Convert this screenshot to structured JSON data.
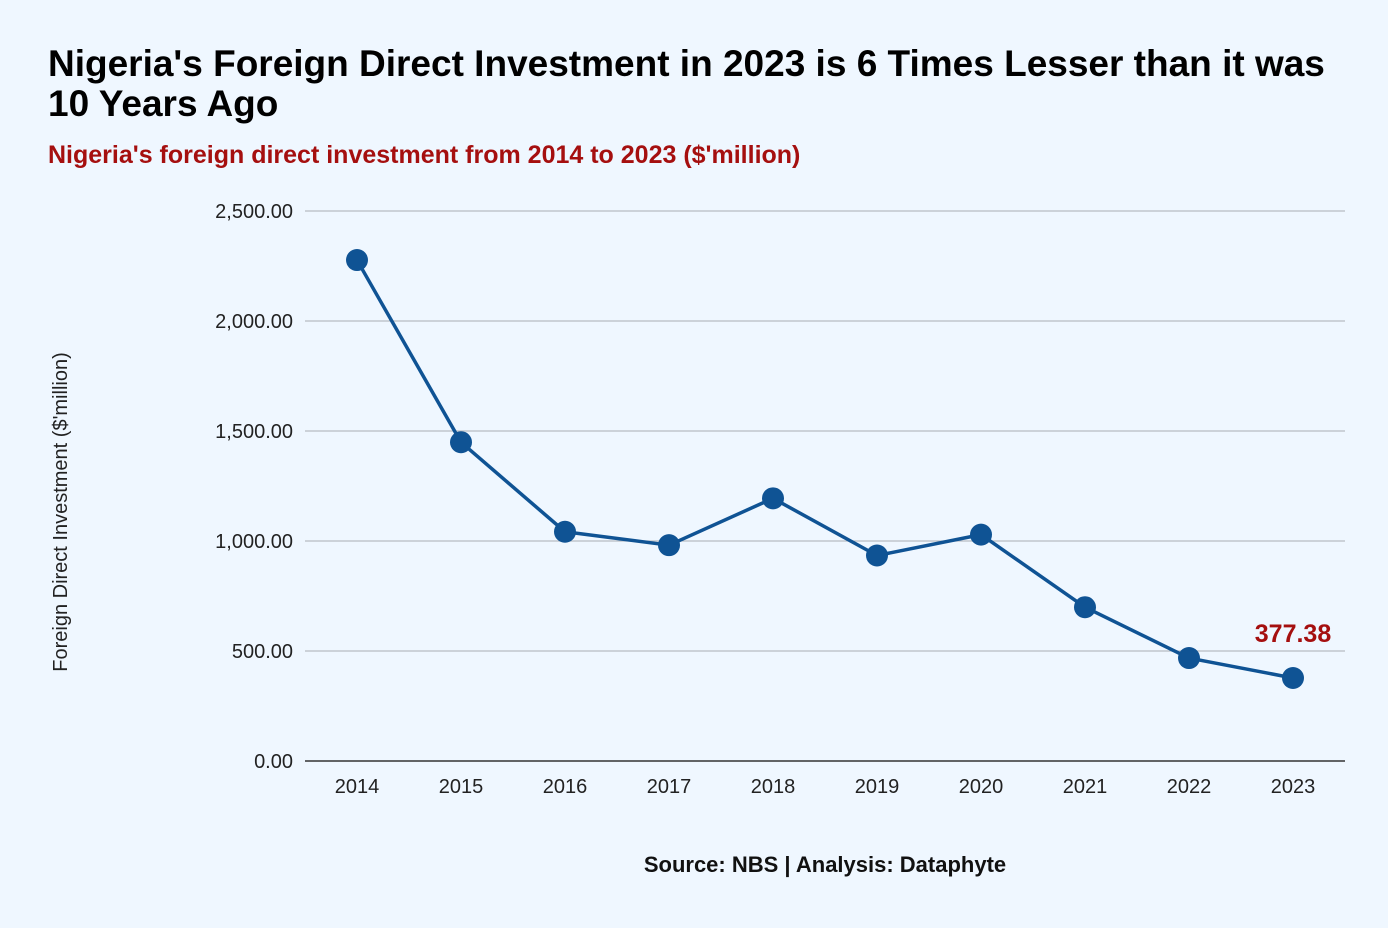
{
  "header": {
    "title": "Nigeria's Foreign Direct Investment in 2023 is 6 Times Lesser than it was 10 Years Ago",
    "subtitle": "Nigeria's foreign direct investment from 2014 to 2023 ($'million)"
  },
  "footer": {
    "source": "Source: NBS | Analysis: Dataphyte"
  },
  "colors": {
    "line": "#0f5394",
    "marker": "#0f5394",
    "highlight_label": "#a50f0f",
    "grid": "#b7bcc2",
    "baseline": "#333333",
    "background": "#eff7ff"
  },
  "chart_data": {
    "type": "line",
    "categories": [
      "2014",
      "2015",
      "2016",
      "2017",
      "2018",
      "2019",
      "2020",
      "2021",
      "2022",
      "2023"
    ],
    "series": [
      {
        "values": [
          2277.0,
          1449.0,
          1042.0,
          981.0,
          1194.0,
          934.0,
          1029.0,
          699.0,
          468.0,
          377.38
        ]
      }
    ],
    "ylabel": "Foreign Direct Investment ($'million)",
    "xlabel": "",
    "ylim": [
      0,
      2500
    ],
    "yticks": [
      0,
      500,
      1000,
      1500,
      2000,
      2500
    ],
    "ytick_labels": [
      "0.00",
      "500.00",
      "1,000.00",
      "1,500.00",
      "2,000.00",
      "2,500.00"
    ],
    "grid": "horizontal",
    "annotations": [
      {
        "category": "2023",
        "text": "377.38"
      }
    ]
  }
}
